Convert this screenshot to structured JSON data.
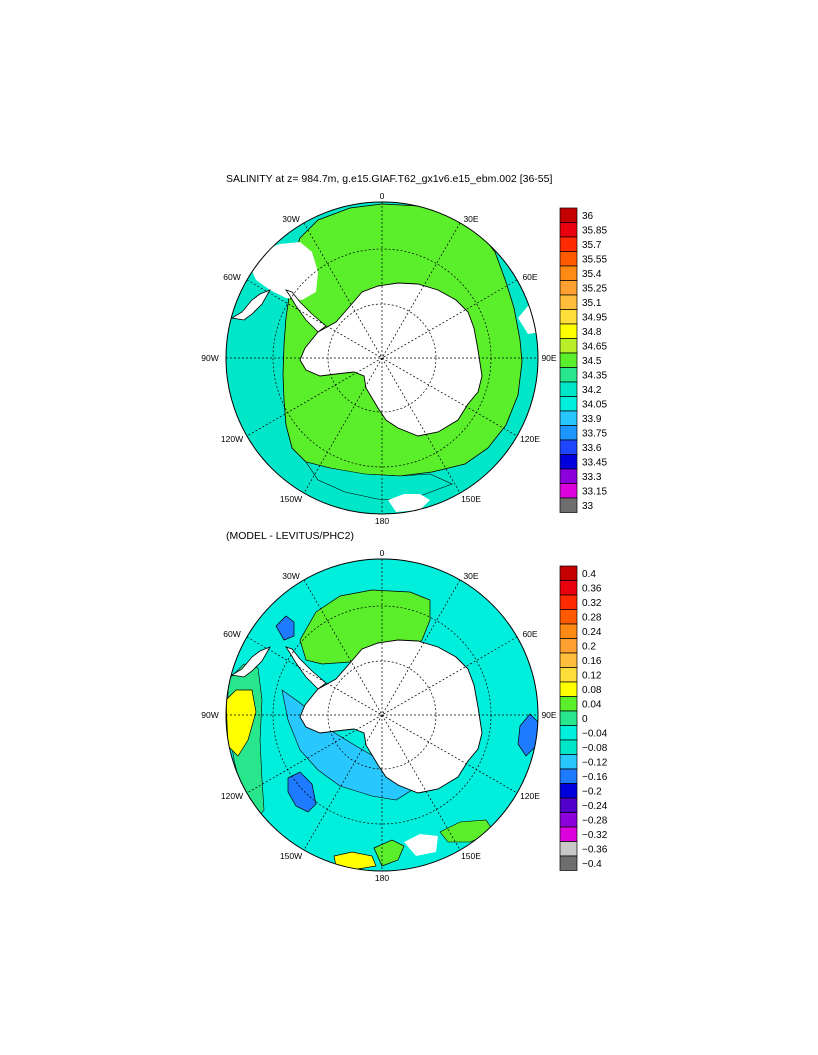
{
  "panel_top": {
    "title": "SALINITY at z= 984.7m, g.e15.GIAF.T62_gx1v6.e15_ebm.002 [36-55]",
    "lon_labels": [
      "0",
      "30E",
      "60E",
      "90E",
      "120E",
      "150E",
      "180",
      "150W",
      "120W",
      "90W",
      "60W",
      "30W"
    ],
    "colorbar": {
      "ticks": [
        "36",
        "35.85",
        "35.7",
        "35.55",
        "35.4",
        "35.25",
        "35.1",
        "34.95",
        "34.8",
        "34.65",
        "34.5",
        "34.35",
        "34.2",
        "34.05",
        "33.9",
        "33.75",
        "33.6",
        "33.45",
        "33.3",
        "33.15",
        "33"
      ],
      "colors": [
        "#c40000",
        "#e8000e",
        "#ff2a00",
        "#ff5a00",
        "#ff8a14",
        "#ffa030",
        "#ffbe3c",
        "#ffde3c",
        "#ffff00",
        "#b8ef28",
        "#5aef2a",
        "#28e68c",
        "#00e6c8",
        "#00eedc",
        "#28c8ff",
        "#1e96ff",
        "#1e46ff",
        "#0000dc",
        "#8c00dc",
        "#dc00dc",
        "#c8c8c8"
      ],
      "extra": "#6e6e6e"
    }
  },
  "panel_bottom": {
    "title": "(MODEL - LEVITUS/PHC2)",
    "lon_labels": [
      "0",
      "30E",
      "60E",
      "90E",
      "120E",
      "150E",
      "180",
      "150W",
      "120W",
      "90W",
      "60W",
      "30W"
    ],
    "colorbar": {
      "ticks": [
        "0.4",
        "0.36",
        "0.32",
        "0.28",
        "0.24",
        "0.2",
        "0.16",
        "0.12",
        "0.08",
        "0.04",
        "0",
        "−0.04",
        "−0.08",
        "−0.12",
        "−0.16",
        "−0.2",
        "−0.24",
        "−0.28",
        "−0.32",
        "−0.36",
        "−0.4"
      ],
      "colors": [
        "#c40000",
        "#e8000e",
        "#ff2a00",
        "#ff5a00",
        "#ff8a14",
        "#ffa030",
        "#ffbe3c",
        "#ffde3c",
        "#ffff00",
        "#5aef2a",
        "#28e68c",
        "#00eedc",
        "#00e6c8",
        "#28c8ff",
        "#1e7aff",
        "#0000dc",
        "#5000c8",
        "#8c00dc",
        "#dc00dc",
        "#c8c8c8"
      ],
      "extra": "#6e6e6e"
    }
  }
}
